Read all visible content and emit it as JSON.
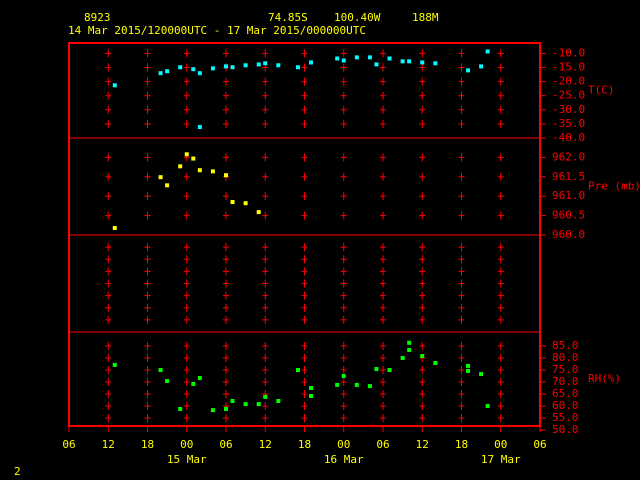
{
  "header": {
    "station": "8923",
    "lat": "74.85S",
    "lon": "100.40W",
    "elev": "188M",
    "period": "14 Mar 2015/120000UTC - 17 Mar 2015/000000UTC"
  },
  "footer": "2",
  "chart_data": [
    {
      "type": "scatter",
      "axis_label": "T(C)",
      "color": "#00ffff",
      "x": [
        "2015-03-14T13:00",
        "2015-03-14T20:00",
        "2015-03-14T21:00",
        "2015-03-14T23:00",
        "2015-03-15T01:00",
        "2015-03-15T02:00",
        "2015-03-15T02:00",
        "2015-03-15T04:00",
        "2015-03-15T06:00",
        "2015-03-15T07:00",
        "2015-03-15T09:00",
        "2015-03-15T11:00",
        "2015-03-15T12:00",
        "2015-03-15T14:00",
        "2015-03-15T17:00",
        "2015-03-15T19:00",
        "2015-03-15T23:00",
        "2015-03-16T00:00",
        "2015-03-16T02:00",
        "2015-03-16T04:00",
        "2015-03-16T05:00",
        "2015-03-16T07:00",
        "2015-03-16T09:00",
        "2015-03-16T10:00",
        "2015-03-16T12:00",
        "2015-03-16T14:00",
        "2015-03-16T19:00",
        "2015-03-16T21:00",
        "2015-03-16T22:00"
      ],
      "values": [
        -21.3,
        -17.0,
        -16.3,
        -14.9,
        -15.6,
        -17.0,
        -36.1,
        -15.3,
        -14.6,
        -14.9,
        -14.2,
        -13.9,
        -13.5,
        -14.2,
        -14.9,
        -13.2,
        -11.8,
        -12.5,
        -11.4,
        -11.4,
        -13.9,
        -11.8,
        -12.8,
        -12.8,
        -13.2,
        -13.5,
        -16.0,
        -14.6,
        -9.3
      ],
      "ylim": [
        -40,
        -6.3
      ],
      "yticks": [
        {
          "value": -10,
          "label": "-10.0"
        },
        {
          "value": -15,
          "label": "-15.0"
        },
        {
          "value": -20,
          "label": "-20.0"
        },
        {
          "value": -25,
          "label": "-25.0"
        },
        {
          "value": -30,
          "label": "-30.0"
        },
        {
          "value": -35,
          "label": "-35.0"
        },
        {
          "value": -40,
          "label": "-40.0"
        }
      ]
    },
    {
      "type": "scatter",
      "axis_label": "Pre (mb)",
      "color": "#ffff00",
      "x": [
        "2015-03-14T13:00",
        "2015-03-14T20:00",
        "2015-03-14T21:00",
        "2015-03-14T23:00",
        "2015-03-15T00:00",
        "2015-03-15T01:00",
        "2015-03-15T02:00",
        "2015-03-15T04:00",
        "2015-03-15T06:00",
        "2015-03-15T07:00",
        "2015-03-15T09:00",
        "2015-03-15T11:00"
      ],
      "values": [
        960.18,
        961.49,
        961.28,
        961.77,
        962.08,
        961.97,
        961.67,
        961.64,
        961.54,
        960.85,
        960.82,
        960.59
      ],
      "ylim": [
        960,
        962.5
      ],
      "yticks": [
        {
          "value": 960,
          "label": "960.0"
        },
        {
          "value": 960.5,
          "label": "960.5"
        },
        {
          "value": 961,
          "label": "961.0"
        },
        {
          "value": 961.5,
          "label": "961.5"
        },
        {
          "value": 962,
          "label": "962.0"
        }
      ]
    },
    {
      "type": "scatter",
      "axis_label": "RH(%)",
      "color": "#00ff00",
      "x": [
        "2015-03-14T13:00",
        "2015-03-14T20:00",
        "2015-03-14T21:00",
        "2015-03-14T23:00",
        "2015-03-15T01:00",
        "2015-03-15T02:00",
        "2015-03-15T04:00",
        "2015-03-15T06:00",
        "2015-03-15T07:00",
        "2015-03-15T09:00",
        "2015-03-15T11:00",
        "2015-03-15T12:00",
        "2015-03-15T14:00",
        "2015-03-15T17:00",
        "2015-03-15T19:00",
        "2015-03-15T19:00",
        "2015-03-15T23:00",
        "2015-03-16T00:00",
        "2015-03-16T02:00",
        "2015-03-16T04:00",
        "2015-03-16T05:00",
        "2015-03-16T07:00",
        "2015-03-16T09:00",
        "2015-03-16T10:00",
        "2015-03-16T10:00",
        "2015-03-16T12:00",
        "2015-03-16T14:00",
        "2015-03-16T19:00",
        "2015-03-16T19:00",
        "2015-03-16T21:00",
        "2015-03-16T22:00"
      ],
      "values": [
        77.1,
        75,
        70.4,
        58.8,
        69.2,
        71.7,
        58.3,
        58.8,
        62.1,
        60.8,
        60.8,
        63.8,
        62.1,
        75,
        67.5,
        64.2,
        68.8,
        72.5,
        68.8,
        68.3,
        75.4,
        75,
        80,
        86.3,
        83.3,
        80.8,
        77.9,
        76.7,
        74.6,
        73.3,
        60
      ],
      "ylim": [
        51.7,
        90.8
      ],
      "yticks": [
        {
          "value": 50,
          "label": "50.0"
        },
        {
          "value": 55,
          "label": "55.0"
        },
        {
          "value": 60,
          "label": "60.0"
        },
        {
          "value": 65,
          "label": "65.0"
        },
        {
          "value": 70,
          "label": "70.0"
        },
        {
          "value": 75,
          "label": "75.0"
        },
        {
          "value": 80,
          "label": "80.0"
        },
        {
          "value": 85,
          "label": "85.0"
        }
      ],
      "xlim": [
        "2015-03-14T06:00",
        "2015-03-17T06:00"
      ],
      "xticks": [
        {
          "value": "2015-03-14T06:00",
          "label": "06"
        },
        {
          "value": "2015-03-14T12:00",
          "label": "12"
        },
        {
          "value": "2015-03-14T18:00",
          "label": "18"
        },
        {
          "value": "2015-03-15T00:00",
          "label": "00"
        },
        {
          "value": "2015-03-15T06:00",
          "label": "06"
        },
        {
          "value": "2015-03-15T12:00",
          "label": "12"
        },
        {
          "value": "2015-03-15T18:00",
          "label": "18"
        },
        {
          "value": "2015-03-16T00:00",
          "label": "00"
        },
        {
          "value": "2015-03-16T06:00",
          "label": "06"
        },
        {
          "value": "2015-03-16T12:00",
          "label": "12"
        },
        {
          "value": "2015-03-16T18:00",
          "label": "18"
        },
        {
          "value": "2015-03-17T00:00",
          "label": "00"
        },
        {
          "value": "2015-03-17T06:00",
          "label": "06"
        }
      ],
      "date_labels": [
        {
          "value": "2015-03-15T00:00",
          "label": "15 Mar"
        },
        {
          "value": "2015-03-16T00:00",
          "label": "16 Mar"
        },
        {
          "value": "2015-03-17T00:00",
          "label": "17 Mar"
        }
      ]
    }
  ]
}
